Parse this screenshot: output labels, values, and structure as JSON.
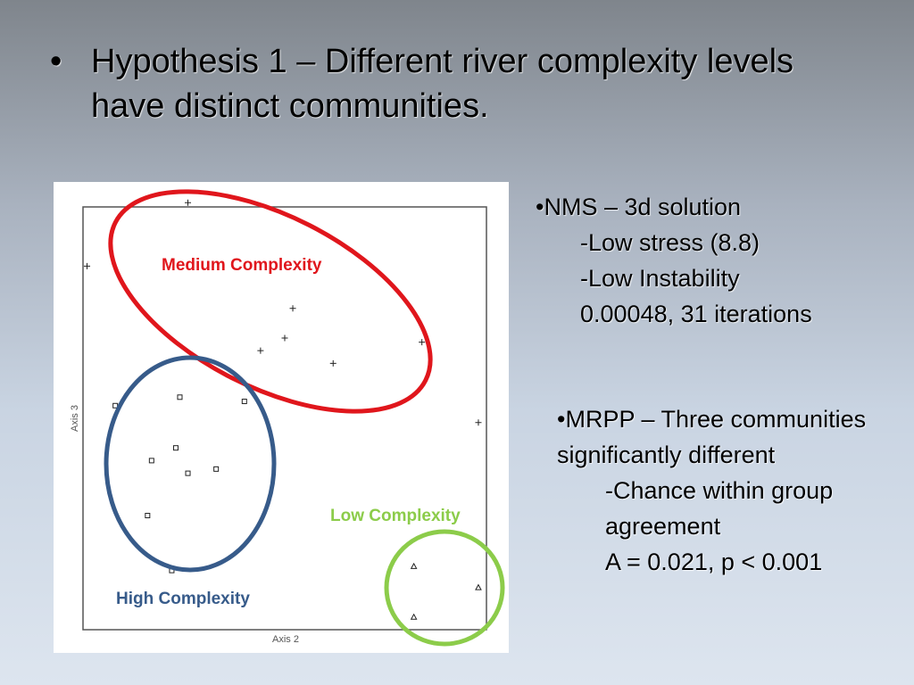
{
  "slide": {
    "bullet": "•",
    "title": "Hypothesis 1 – Different river complexity levels have distinct communities."
  },
  "notes": {
    "nms": {
      "heading": "•NMS – 3d solution",
      "lines": [
        "-Low stress (8.8)",
        "-Low Instability",
        "0.00048, 31 iterations"
      ]
    },
    "mrpp": {
      "heading": "•MRPP – Three communities significantly different",
      "lines": [
        "-Chance within group agreement",
        "A = 0.021, p < 0.001"
      ]
    }
  },
  "chart_data": {
    "type": "scatter",
    "xlabel": "Axis 2",
    "ylabel": "Axis 3",
    "xlim": [
      0,
      100
    ],
    "ylim": [
      0,
      100
    ],
    "grid": false,
    "groups": [
      {
        "name": "Medium Complexity",
        "marker": "plus",
        "color": "#e0161c",
        "points": [
          [
            26,
            101
          ],
          [
            1,
            86
          ],
          [
            52,
            76
          ],
          [
            50,
            69
          ],
          [
            44,
            66
          ],
          [
            62,
            63
          ],
          [
            84,
            68
          ],
          [
            98,
            49
          ]
        ]
      },
      {
        "name": "High Complexity",
        "marker": "square",
        "color": "#375b8a",
        "points": [
          [
            24,
            55
          ],
          [
            40,
            54
          ],
          [
            8,
            53
          ],
          [
            23,
            43
          ],
          [
            17,
            40
          ],
          [
            26,
            37
          ],
          [
            33,
            38
          ],
          [
            16,
            27
          ],
          [
            22,
            14
          ]
        ]
      },
      {
        "name": "Low Complexity",
        "marker": "triangle",
        "color": "#8ccc4a",
        "points": [
          [
            82,
            15
          ],
          [
            98,
            10
          ],
          [
            82,
            3
          ]
        ]
      }
    ]
  }
}
